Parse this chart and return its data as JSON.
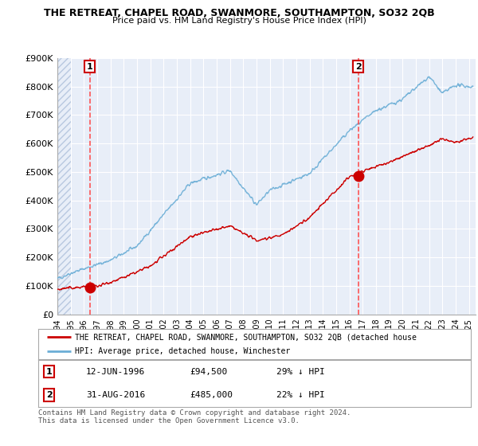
{
  "title": "THE RETREAT, CHAPEL ROAD, SWANMORE, SOUTHAMPTON, SO32 2QB",
  "subtitle": "Price paid vs. HM Land Registry's House Price Index (HPI)",
  "ylabel_values": [
    "£0",
    "£100K",
    "£200K",
    "£300K",
    "£400K",
    "£500K",
    "£600K",
    "£700K",
    "£800K",
    "£900K"
  ],
  "ylim": [
    0,
    900000
  ],
  "xlim_start": 1994.0,
  "xlim_end": 2025.5,
  "sale1_date": 1996.45,
  "sale1_value": 94500,
  "sale2_date": 2016.67,
  "sale2_value": 485000,
  "sale1_label": "1",
  "sale2_label": "2",
  "line_color_hpi": "#6BAED6",
  "line_color_price": "#CC0000",
  "dot_color": "#CC0000",
  "dashed_color": "#FF4444",
  "background_plot": "#E8EEF8",
  "background_hatch_color": "#D0D8EC",
  "legend_line1": "THE RETREAT, CHAPEL ROAD, SWANMORE, SOUTHAMPTON, SO32 2QB (detached house",
  "legend_line2": "HPI: Average price, detached house, Winchester",
  "note1_label": "1",
  "note1_date": "12-JUN-1996",
  "note1_price": "£94,500",
  "note1_hpi": "29% ↓ HPI",
  "note2_label": "2",
  "note2_date": "31-AUG-2016",
  "note2_price": "£485,000",
  "note2_hpi": "22% ↓ HPI",
  "footer": "Contains HM Land Registry data © Crown copyright and database right 2024.\nThis data is licensed under the Open Government Licence v3.0."
}
